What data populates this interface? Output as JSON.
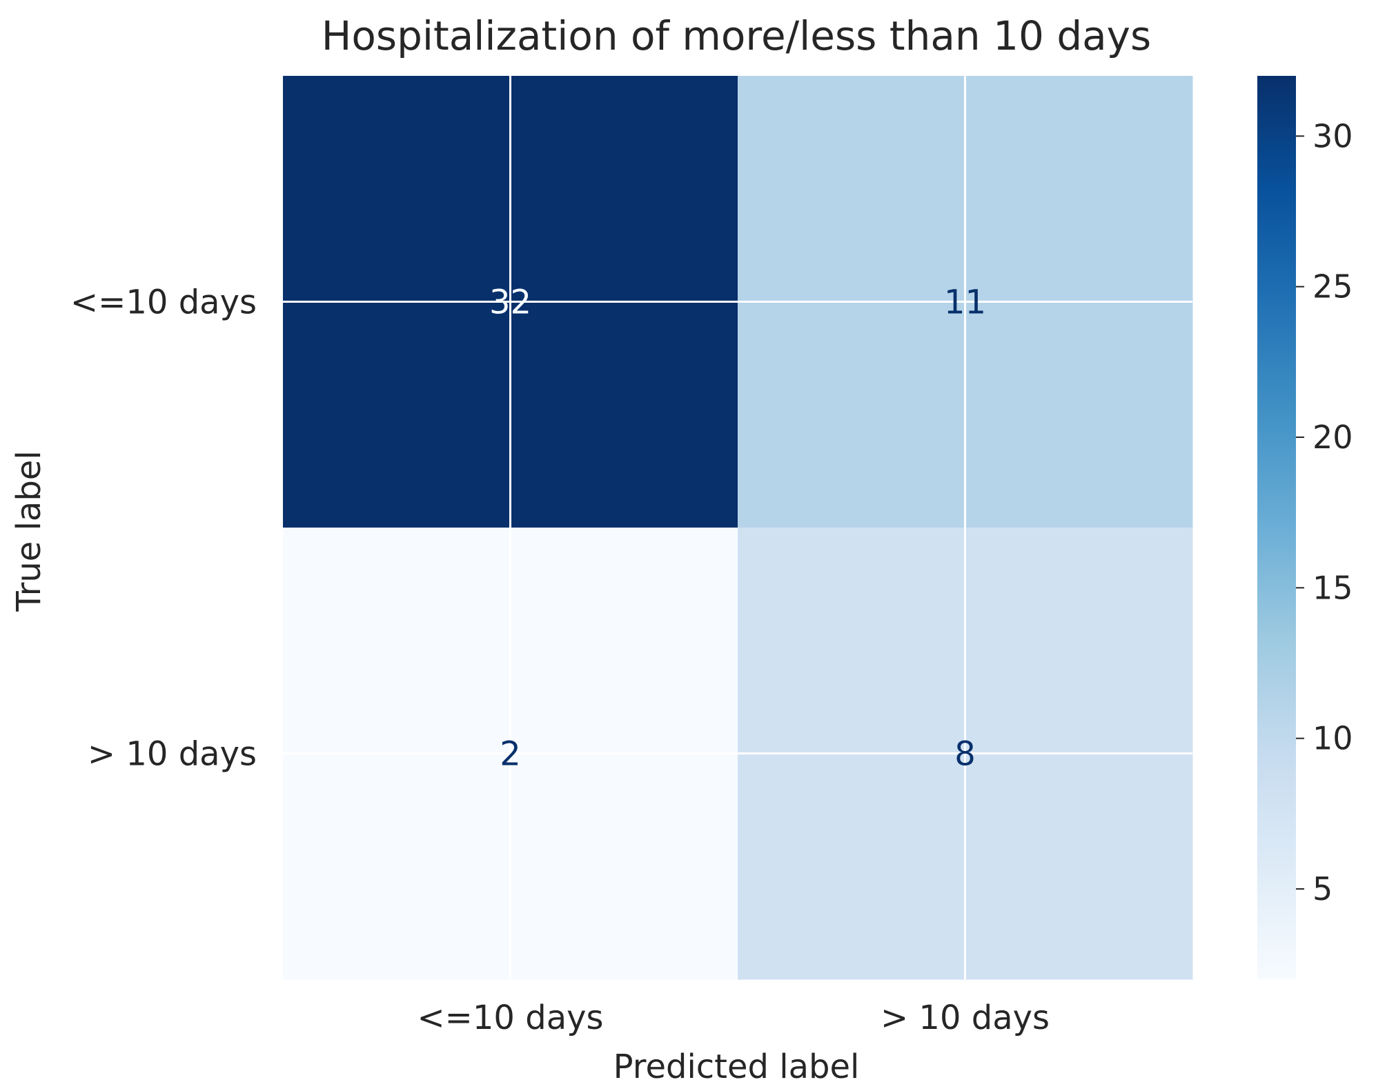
{
  "chart_data": {
    "type": "heatmap",
    "title": "Hospitalization of more/less than 10 days",
    "xlabel": "Predicted label",
    "ylabel": "True label",
    "x_categories": [
      "<=10 days",
      "> 10 days"
    ],
    "y_categories": [
      "<=10 days",
      "> 10 days"
    ],
    "values": [
      [
        32,
        11
      ],
      [
        2,
        8
      ]
    ],
    "colormap": "Blues",
    "vmin": 2,
    "vmax": 32,
    "grid": true,
    "colorbar": {
      "ticks": [
        5,
        10,
        15,
        20,
        25,
        30
      ],
      "tick_labels": [
        "5",
        "10",
        "15",
        "20",
        "25",
        "30"
      ]
    }
  }
}
